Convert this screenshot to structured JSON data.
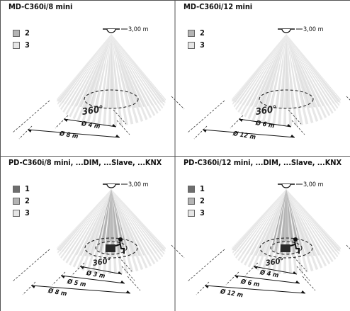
{
  "panels": [
    {
      "title": "MD-C360i/8 mini",
      "height_label": "3,00 m",
      "angle_label": "360°",
      "legend": [
        {
          "label": "2",
          "color": "#b4b4b4"
        },
        {
          "label": "3",
          "color": "#e6e6e6"
        }
      ],
      "dimensions": [
        "Ø 4 m",
        "Ø 8 m"
      ]
    },
    {
      "title": "MD-C360i/12 mini",
      "height_label": "3,00 m",
      "angle_label": "360°",
      "legend": [
        {
          "label": "2",
          "color": "#b4b4b4"
        },
        {
          "label": "3",
          "color": "#e6e6e6"
        }
      ],
      "dimensions": [
        "Ø 6 m",
        "Ø 12 m"
      ]
    },
    {
      "title": "PD-C360i/8 mini, ...DIM, ...Slave, ...KNX",
      "height_label": "3,00 m",
      "angle_label": "360°",
      "legend": [
        {
          "label": "1",
          "color": "#6e6e6e"
        },
        {
          "label": "2",
          "color": "#b4b4b4"
        },
        {
          "label": "3",
          "color": "#e6e6e6"
        }
      ],
      "dimensions": [
        "Ø 3 m",
        "Ø 5 m",
        "Ø 8 m"
      ]
    },
    {
      "title": "PD-C360i/12 mini, ...DIM, ...Slave, ...KNX",
      "height_label": "3,00 m",
      "angle_label": "360°",
      "legend": [
        {
          "label": "1",
          "color": "#6e6e6e"
        },
        {
          "label": "2",
          "color": "#b4b4b4"
        },
        {
          "label": "3",
          "color": "#e6e6e6"
        }
      ],
      "dimensions": [
        "Ø 4 m",
        "Ø 6 m",
        "Ø 12 m"
      ]
    }
  ]
}
